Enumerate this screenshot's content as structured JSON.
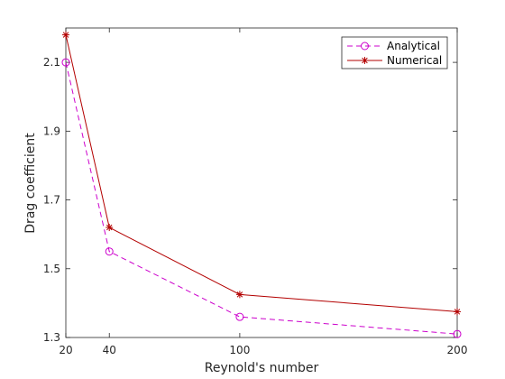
{
  "chart_data": {
    "type": "line",
    "xlabel": "Reynold's number",
    "ylabel": "Drag coefficient",
    "xlim": [
      20,
      200
    ],
    "ylim": [
      1.3,
      2.2
    ],
    "xticks": [
      "20",
      "40",
      "100",
      "200"
    ],
    "xtick_values": [
      20,
      40,
      100,
      200
    ],
    "yticks": [
      "1.3",
      "1.5",
      "1.7",
      "1.9",
      "2.1"
    ],
    "ytick_values": [
      1.3,
      1.5,
      1.7,
      1.9,
      2.1
    ],
    "grid": false,
    "legend_position": "top-right",
    "series": [
      {
        "name": "Analytical",
        "x": [
          20,
          40,
          100,
          200
        ],
        "values": [
          2.1,
          1.55,
          1.36,
          1.31
        ],
        "color": "#cc00cc",
        "line_style": "dashed",
        "marker": "circle"
      },
      {
        "name": "Numerical",
        "x": [
          20,
          40,
          100,
          200
        ],
        "values": [
          2.18,
          1.62,
          1.425,
          1.375
        ],
        "color": "#b30000",
        "line_style": "solid",
        "marker": "asterisk"
      }
    ]
  }
}
